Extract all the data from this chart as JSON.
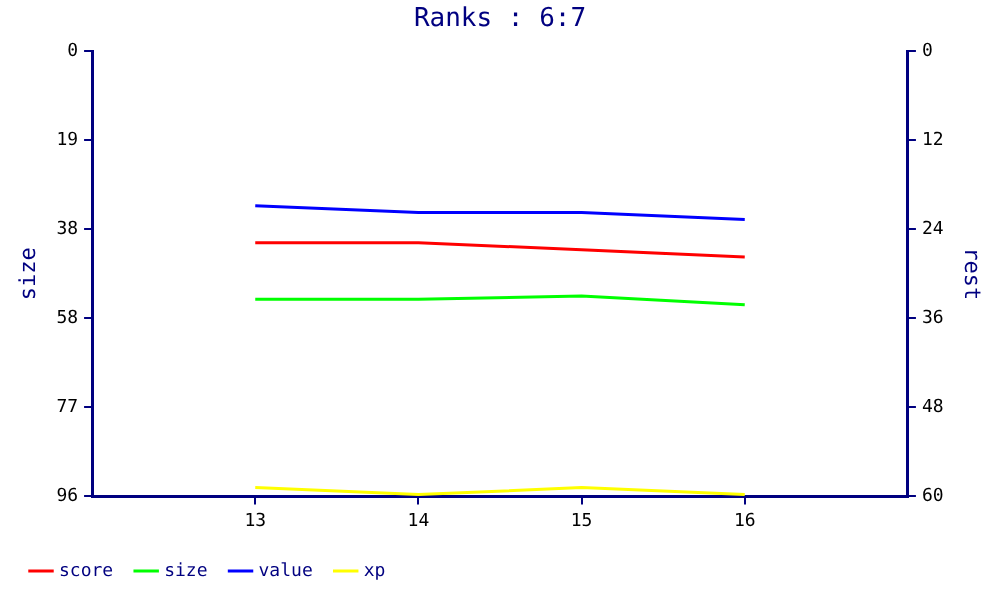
{
  "chart_data": {
    "type": "line",
    "title": "Ranks : 6:7",
    "ylabel": "size",
    "y2label": "rest",
    "x": [
      13,
      14,
      15,
      16
    ],
    "xlim": [
      12,
      17
    ],
    "xticks": [
      13,
      14,
      15,
      16
    ],
    "ylim": [
      96,
      0
    ],
    "yticks": [
      0,
      {
        "value": 19.2,
        "label": "19"
      },
      {
        "value": 38.4,
        "label": "38"
      },
      {
        "value": 57.6,
        "label": "58"
      },
      {
        "value": 76.8,
        "label": "77"
      },
      96
    ],
    "y2lim": [
      60,
      0
    ],
    "y2ticks": [
      0,
      12,
      24,
      36,
      48,
      60
    ],
    "grid": false,
    "legend": "bottom left",
    "marker": "none",
    "line_style": "solid",
    "series": [
      {
        "name": "score",
        "color": "#ff0000",
        "values": [
          41.3,
          41.3,
          42.8,
          44.4
        ]
      },
      {
        "name": "size",
        "color": "#00ff00",
        "values": [
          53.5,
          53.5,
          52.8,
          54.7
        ]
      },
      {
        "name": "value",
        "color": "#0000ff",
        "values": [
          33.3,
          34.8,
          34.8,
          36.3
        ]
      },
      {
        "name": "xp",
        "color": "#ffff00",
        "values": [
          94.1,
          95.6,
          94.1,
          95.6
        ]
      }
    ]
  }
}
